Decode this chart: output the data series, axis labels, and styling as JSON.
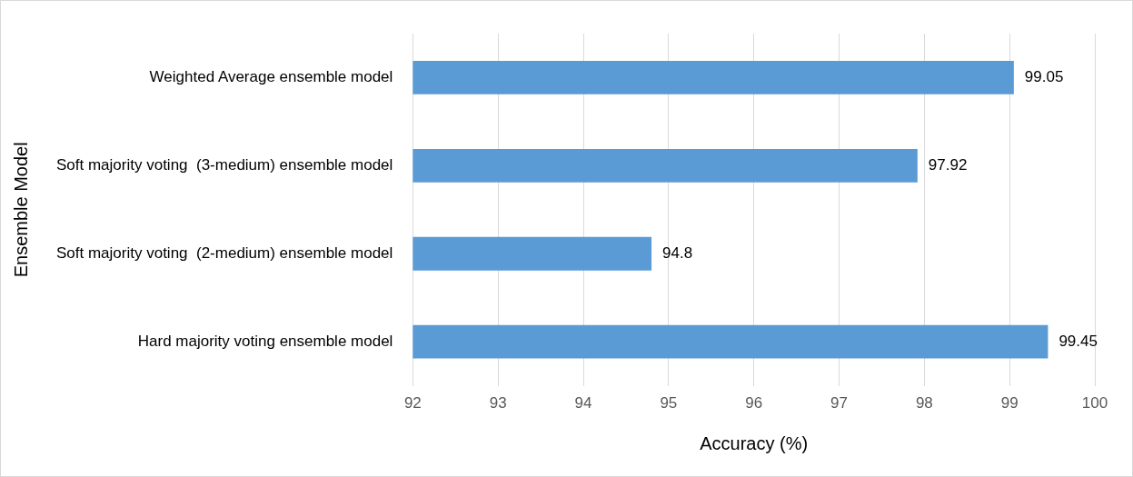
{
  "chart_data": {
    "type": "bar",
    "orientation": "horizontal",
    "xlabel": "Accuracy (%)",
    "ylabel": "Ensemble Model",
    "categories": [
      "Weighted Average ensemble model",
      "Soft majority voting  (3-medium) ensemble model",
      "Soft majority voting  (2-medium) ensemble model",
      "Hard majority voting ensemble model"
    ],
    "values": [
      99.05,
      97.92,
      94.8,
      99.45
    ],
    "color": "#5b9bd5",
    "xlim": [
      92,
      100
    ],
    "xticks": [
      92,
      93,
      94,
      95,
      96,
      97,
      98,
      99,
      100
    ],
    "grid": "x",
    "legend": false,
    "data_labels": true
  }
}
